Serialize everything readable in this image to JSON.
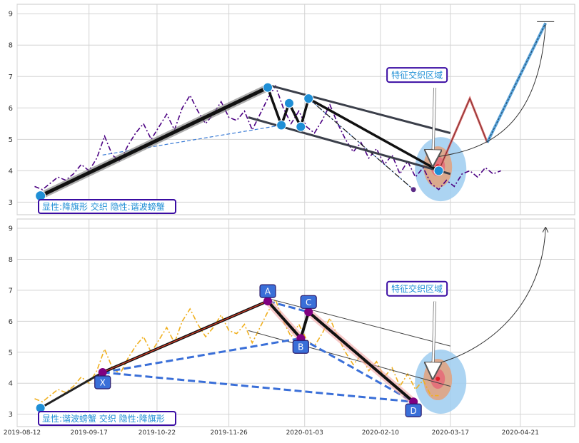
{
  "chart_data": {
    "type": "line",
    "x_tick_labels": [
      "2019-08-12",
      "2019-09-17",
      "2019-10-22",
      "2019-11-26",
      "2020-01-03",
      "2020-02-10",
      "2020-03-17",
      "2020-04-21"
    ],
    "y_tick_labels": [
      "3",
      "4",
      "5",
      "6",
      "7",
      "8",
      "9"
    ],
    "grid": true,
    "panels": [
      {
        "ylim": [
          2.6,
          9.3
        ],
        "label_box": "显性:降旗形 交织 隐性:谐波螃蟹",
        "zone_label": "特征交织区域",
        "price_series": {
          "color": "#4b0082",
          "style": "dash-dot",
          "x": [
            0,
            4,
            8,
            12,
            16,
            20,
            24,
            28,
            32,
            36,
            40,
            44,
            48,
            52,
            56,
            60,
            64,
            68,
            72,
            76,
            80,
            84,
            88,
            92,
            96,
            100,
            104,
            108,
            112,
            116,
            120,
            124,
            128,
            132,
            136,
            140,
            144,
            148,
            152,
            156,
            160,
            164,
            168,
            172,
            176,
            180,
            184,
            188,
            192,
            196,
            200,
            204,
            208,
            212,
            216,
            220,
            224,
            228,
            232,
            236,
            240
          ],
          "y": [
            3.5,
            3.4,
            3.6,
            3.8,
            3.7,
            3.9,
            4.2,
            4.0,
            4.4,
            5.1,
            4.5,
            4.3,
            4.8,
            5.2,
            5.5,
            5.0,
            5.4,
            5.8,
            5.3,
            6.0,
            6.4,
            5.9,
            5.5,
            5.8,
            6.2,
            5.7,
            5.6,
            5.9,
            5.3,
            5.8,
            6.3,
            6.7,
            6.0,
            5.5,
            5.9,
            5.4,
            5.2,
            5.6,
            6.1,
            5.5,
            5.0,
            4.6,
            4.9,
            4.4,
            4.7,
            4.2,
            4.5,
            3.9,
            4.3,
            3.8,
            4.1,
            3.6,
            3.4,
            3.7,
            3.5,
            3.9,
            4.0,
            3.8,
            4.1,
            3.9,
            4.0
          ]
        },
        "flag_channel": {
          "upper": [
            [
              122,
              6.7
            ],
            [
              214,
              5.2
            ]
          ],
          "lower": [
            [
              110,
              5.7
            ],
            [
              214,
              3.9
            ]
          ]
        },
        "pole": {
          "points": [
            [
              3,
              3.2
            ],
            [
              120,
              6.65
            ]
          ]
        },
        "zigzag": {
          "points": [
            [
              120,
              6.65
            ],
            [
              127,
              5.45
            ],
            [
              131,
              6.15
            ],
            [
              137,
              5.4
            ],
            [
              141,
              6.3
            ],
            [
              208,
              4.0
            ]
          ]
        },
        "hidden_dash": {
          "points": [
            [
              35,
              4.5
            ],
            [
              127,
              5.45
            ]
          ]
        },
        "dashdot_line": {
          "points": [
            [
              141,
              6.3
            ],
            [
              195,
              3.4
            ]
          ]
        },
        "projection": {
          "points": [
            [
              208,
              4.0
            ],
            [
              224,
              6.3
            ],
            [
              233,
              4.9
            ],
            [
              263,
              8.7
            ]
          ]
        },
        "crab_points": [
          {
            "x": 3,
            "y": 3.2
          },
          {
            "x": 120,
            "y": 6.65
          },
          {
            "x": 127,
            "y": 5.45
          },
          {
            "x": 131,
            "y": 6.15
          },
          {
            "x": 137,
            "y": 5.4
          },
          {
            "x": 141,
            "y": 6.3
          },
          {
            "x": 208,
            "y": 4.0
          }
        ],
        "endpoint_marker": {
          "x": 195,
          "y": 3.4
        }
      },
      {
        "ylim": [
          2.6,
          9.3
        ],
        "label_box": "显性:谐波螃蟹 交织 隐性:降旗形",
        "zone_label": "特征交织区域",
        "price_series": {
          "color": "#f0b020",
          "style": "dash-dot",
          "x": [
            0,
            4,
            8,
            12,
            16,
            20,
            24,
            28,
            32,
            36,
            40,
            44,
            48,
            52,
            56,
            60,
            64,
            68,
            72,
            76,
            80,
            84,
            88,
            92,
            96,
            100,
            104,
            108,
            112,
            116,
            120,
            124,
            128,
            132,
            136,
            140,
            144,
            148,
            152,
            156,
            160,
            164,
            168,
            172,
            176,
            180,
            184,
            188,
            192,
            196,
            200,
            204,
            208
          ],
          "y": [
            3.5,
            3.4,
            3.6,
            3.8,
            3.7,
            3.9,
            4.2,
            4.0,
            4.4,
            5.1,
            4.5,
            4.3,
            4.8,
            5.2,
            5.5,
            5.0,
            5.4,
            5.8,
            5.3,
            6.0,
            6.4,
            5.9,
            5.5,
            5.8,
            6.2,
            5.7,
            5.6,
            5.9,
            5.3,
            5.8,
            6.3,
            6.7,
            6.0,
            5.5,
            5.9,
            5.4,
            5.2,
            5.6,
            6.1,
            5.5,
            5.0,
            4.6,
            4.9,
            4.4,
            4.7,
            4.2,
            4.5,
            3.9,
            4.3,
            3.8,
            4.1,
            3.6,
            3.6
          ]
        },
        "harmonic_points": [
          {
            "label": "X",
            "x": 35,
            "y": 4.35
          },
          {
            "label": "A",
            "x": 120,
            "y": 6.65
          },
          {
            "label": "B",
            "x": 137,
            "y": 5.45
          },
          {
            "label": "C",
            "x": 141,
            "y": 6.3
          },
          {
            "label": "D",
            "x": 195,
            "y": 3.4
          }
        ],
        "flag_lines": {
          "upper": [
            [
              122,
              6.7
            ],
            [
              214,
              5.2
            ]
          ],
          "lower": [
            [
              110,
              5.7
            ],
            [
              214,
              3.9
            ]
          ]
        },
        "start_marker": {
          "x": 3,
          "y": 3.2
        }
      }
    ]
  },
  "colors": {
    "grid": "#d3d3d3",
    "axis_text": "#333333",
    "marker_blue": "#1f8fd6",
    "harmonic_blue": "#3a6fd8",
    "purple": "#800080",
    "label_border": "#3a0ca3",
    "label_text": "#1f8fd6"
  }
}
